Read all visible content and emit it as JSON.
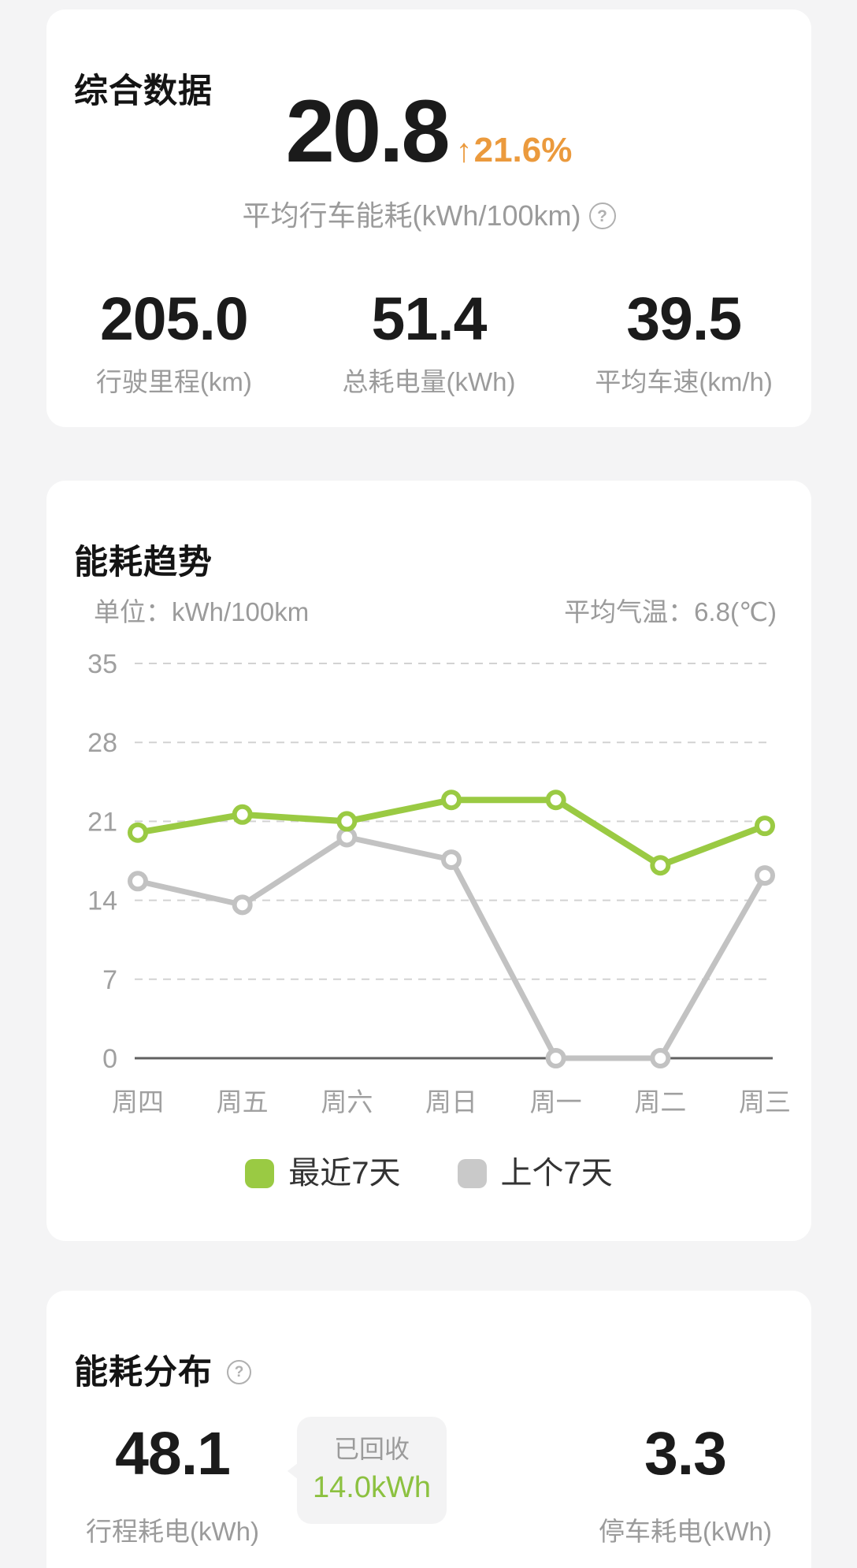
{
  "icons": {
    "help": "?",
    "up_arrow": "↑"
  },
  "colors": {
    "background": "#f4f4f5",
    "card": "#ffffff",
    "accent_orange": "#eb9a3d",
    "accent_green": "#9aca43",
    "line_gray": "#c2c2c2",
    "legend_gray": "#c9c9c9",
    "axis_text": "#a0a0a0",
    "grid_line": "#d2d2d2",
    "zero_axis": "#606060"
  },
  "summary_card": {
    "title": "综合数据",
    "main_value": "20.8",
    "trend_value": "21.6%",
    "main_label": "平均行车能耗(kWh/100km)",
    "stats": [
      {
        "value": "205.0",
        "label": "行驶里程(km)"
      },
      {
        "value": "51.4",
        "label": "总耗电量(kWh)"
      },
      {
        "value": "39.5",
        "label": "平均车速(km/h)"
      }
    ]
  },
  "trend_card": {
    "title": "能耗趋势",
    "unit_label": "单位：kWh/100km",
    "temp_label": "平均气温：6.8(℃)",
    "legend": [
      {
        "label": "最近7天",
        "color": "#9aca43"
      },
      {
        "label": "上个7天",
        "color": "#c9c9c9"
      }
    ],
    "chart_data": {
      "type": "line",
      "categories": [
        "周四",
        "周五",
        "周六",
        "周日",
        "周一",
        "周二",
        "周三"
      ],
      "series": [
        {
          "name": "最近7天",
          "color": "#9aca43",
          "values": [
            20.0,
            21.6,
            21.0,
            22.9,
            22.9,
            17.1,
            20.6
          ]
        },
        {
          "name": "上个7天",
          "color": "#c2c2c2",
          "values": [
            15.7,
            13.6,
            19.6,
            17.6,
            0,
            0,
            16.2
          ]
        }
      ],
      "ylabel": "kWh/100km",
      "yticks": [
        0,
        7,
        14,
        21,
        28,
        35
      ],
      "ylim": [
        0,
        35
      ],
      "grid": "horizontal-dashed",
      "legend_position": "bottom"
    }
  },
  "distribution_card": {
    "title": "能耗分布",
    "left_stat": {
      "value": "48.1",
      "label": "行程耗电(kWh)"
    },
    "badge": {
      "title": "已回收",
      "value": "14.0kWh"
    },
    "right_stat": {
      "value": "3.3",
      "label": "停车耗电(kWh)"
    }
  }
}
